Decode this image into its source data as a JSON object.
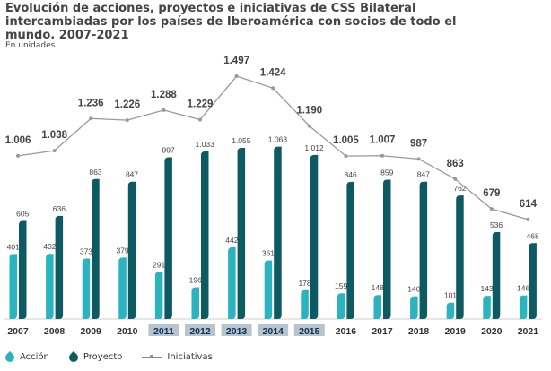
{
  "title": "Evolución de acciones, proyectos e iniciativas de CSS Bilateral intercambiadas por los países de Iberoamérica con socios de todo el mundo. 2007-2021",
  "subtitle": "En unidades",
  "colors": {
    "accion": "#2bb3c0",
    "proyecto": "#0d5a63",
    "iniciativas": "#999999",
    "highlight_bg": "#b7c4cc"
  },
  "legend": [
    {
      "name": "Acción",
      "type": "bar"
    },
    {
      "name": "Proyecto",
      "type": "bar"
    },
    {
      "name": "Iniciativas",
      "type": "line"
    }
  ],
  "chart_data": {
    "type": "bar",
    "categories": [
      "2007",
      "2008",
      "2009",
      "2010",
      "2011",
      "2012",
      "2013",
      "2014",
      "2015",
      "2016",
      "2017",
      "2018",
      "2019",
      "2020",
      "2021"
    ],
    "highlighted_categories": [
      "2011",
      "2012",
      "2013",
      "2014",
      "2015"
    ],
    "series": [
      {
        "name": "Acción",
        "type": "bar",
        "values": [
          401,
          402,
          373,
          379,
          291,
          196,
          442,
          361,
          178,
          159,
          148,
          140,
          101,
          143,
          146
        ],
        "labels": [
          "401",
          "402",
          "373",
          "379",
          "291",
          "196",
          "442",
          "361",
          "178",
          "159",
          "148",
          "140",
          "101",
          "143",
          "146"
        ]
      },
      {
        "name": "Proyecto",
        "type": "bar",
        "values": [
          605,
          636,
          863,
          847,
          997,
          1033,
          1055,
          1063,
          1012,
          846,
          859,
          847,
          762,
          536,
          468
        ],
        "labels": [
          "605",
          "636",
          "863",
          "847",
          "997",
          "1.033",
          "1.055",
          "1.063",
          "1.012",
          "846",
          "859",
          "847",
          "762",
          "536",
          "468"
        ]
      },
      {
        "name": "Iniciativas",
        "type": "line",
        "values": [
          1006,
          1038,
          1236,
          1226,
          1288,
          1229,
          1497,
          1424,
          1190,
          1005,
          1007,
          987,
          863,
          679,
          614
        ],
        "labels": [
          "1.006",
          "1.038",
          "1.236",
          "1.226",
          "1.288",
          "1.229",
          "1.497",
          "1.424",
          "1.190",
          "1.005",
          "1.007",
          "987",
          "863",
          "679",
          "614"
        ]
      }
    ]
  }
}
